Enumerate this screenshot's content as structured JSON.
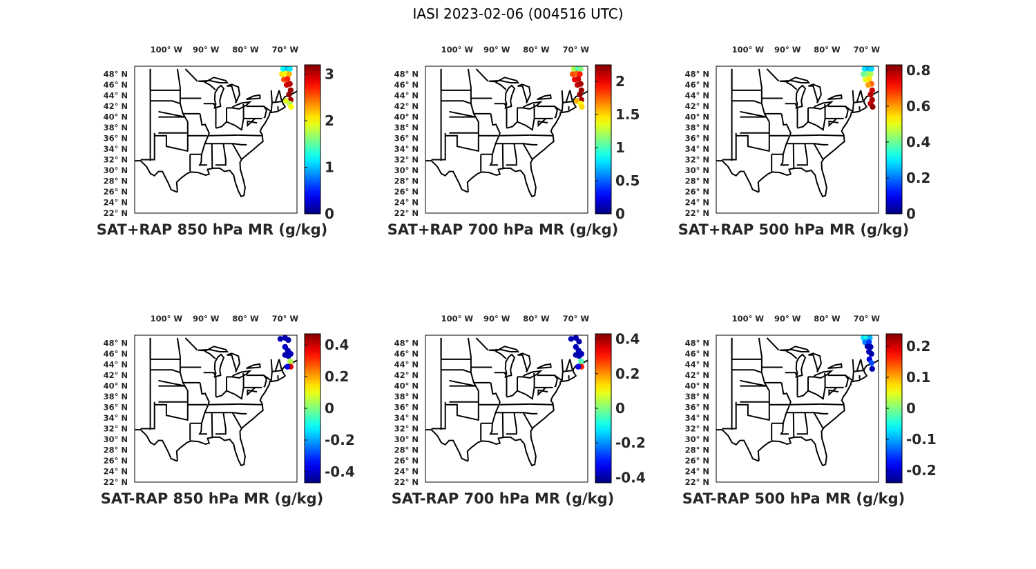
{
  "title": "IASI 2023-02-06 (004516 UTC)",
  "map_axes": {
    "lon_ticks": [
      {
        "value": -100,
        "label": "100",
        "hemi": "W"
      },
      {
        "value": -90,
        "label": "90",
        "hemi": "W"
      },
      {
        "value": -80,
        "label": "80",
        "hemi": "W"
      },
      {
        "value": -70,
        "label": "70",
        "hemi": "W"
      }
    ],
    "lat_ticks": [
      {
        "value": 48,
        "label": "48",
        "hemi": "N"
      },
      {
        "value": 46,
        "label": "46",
        "hemi": "N"
      },
      {
        "value": 44,
        "label": "44",
        "hemi": "N"
      },
      {
        "value": 42,
        "label": "42",
        "hemi": "N"
      },
      {
        "value": 40,
        "label": "40",
        "hemi": "N"
      },
      {
        "value": 38,
        "label": "38",
        "hemi": "N"
      },
      {
        "value": 36,
        "label": "36",
        "hemi": "N"
      },
      {
        "value": 34,
        "label": "34",
        "hemi": "N"
      },
      {
        "value": 32,
        "label": "32",
        "hemi": "N"
      },
      {
        "value": 30,
        "label": "30",
        "hemi": "N"
      },
      {
        "value": 28,
        "label": "28",
        "hemi": "N"
      },
      {
        "value": 26,
        "label": "26",
        "hemi": "N"
      },
      {
        "value": 24,
        "label": "24",
        "hemi": "N"
      },
      {
        "value": 22,
        "label": "22",
        "hemi": "N"
      }
    ],
    "lon_range": [
      -108,
      -67
    ],
    "lat_range": [
      22,
      49.5
    ],
    "region": "Eastern United States with state boundaries",
    "colormap": "jet"
  },
  "panels": [
    {
      "title": "SAT+RAP 850 hPa MR (g/kg)",
      "cbar_range": [
        0,
        3.2
      ],
      "cbar_ticks": [
        "0",
        "1",
        "2",
        "3"
      ],
      "tick_values": [
        0,
        1,
        2,
        3
      ]
    },
    {
      "title": "SAT+RAP 700 hPa MR (g/kg)",
      "cbar_range": [
        0,
        2.25
      ],
      "cbar_ticks": [
        "0",
        "0.5",
        "1",
        "1.5",
        "2"
      ],
      "tick_values": [
        0,
        0.5,
        1,
        1.5,
        2
      ]
    },
    {
      "title": "SAT+RAP 500 hPa MR (g/kg)",
      "cbar_range": [
        0,
        0.83
      ],
      "cbar_ticks": [
        "0",
        "0.2",
        "0.4",
        "0.6",
        "0.8"
      ],
      "tick_values": [
        0,
        0.2,
        0.4,
        0.6,
        0.8
      ]
    },
    {
      "title": "SAT-RAP 850 hPa MR (g/kg)",
      "cbar_range": [
        -0.47,
        0.47
      ],
      "cbar_ticks": [
        "-0.4",
        "-0.2",
        "0",
        "0.2",
        "0.4"
      ],
      "tick_values": [
        -0.4,
        -0.2,
        0,
        0.2,
        0.4
      ]
    },
    {
      "title": "SAT-RAP 700 hPa MR (g/kg)",
      "cbar_range": [
        -0.43,
        0.43
      ],
      "cbar_ticks": [
        "-0.4",
        "-0.2",
        "0",
        "0.2",
        "0.4"
      ],
      "tick_values": [
        -0.4,
        -0.2,
        0,
        0.2,
        0.4
      ]
    },
    {
      "title": "SAT-RAP 500 hPa MR (g/kg)",
      "cbar_range": [
        -0.24,
        0.24
      ],
      "cbar_ticks": [
        "-0.2",
        "-0.1",
        "0",
        "0.1",
        "0.2"
      ],
      "tick_values": [
        -0.2,
        -0.1,
        0,
        0.1,
        0.2
      ]
    }
  ]
}
